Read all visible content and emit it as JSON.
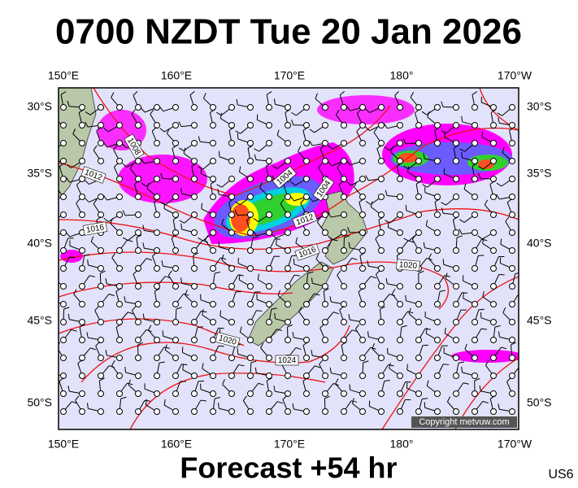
{
  "title": "0700 NZDT Tue 20 Jan 2026",
  "longitude_labels": [
    "150°E",
    "160°E",
    "170°E",
    "180°",
    "170°W"
  ],
  "latitude_labels": [
    "30°S",
    "35°S",
    "40°S",
    "45°S",
    "50°S"
  ],
  "isobar_labels": [
    "1008",
    "1012",
    "1016",
    "1004",
    "1004",
    "1012",
    "1016",
    "1020",
    "1020",
    "1024"
  ],
  "copyright": "Copyright metvuw.com",
  "forecast": "Forecast +54 hr",
  "code": "US6"
}
